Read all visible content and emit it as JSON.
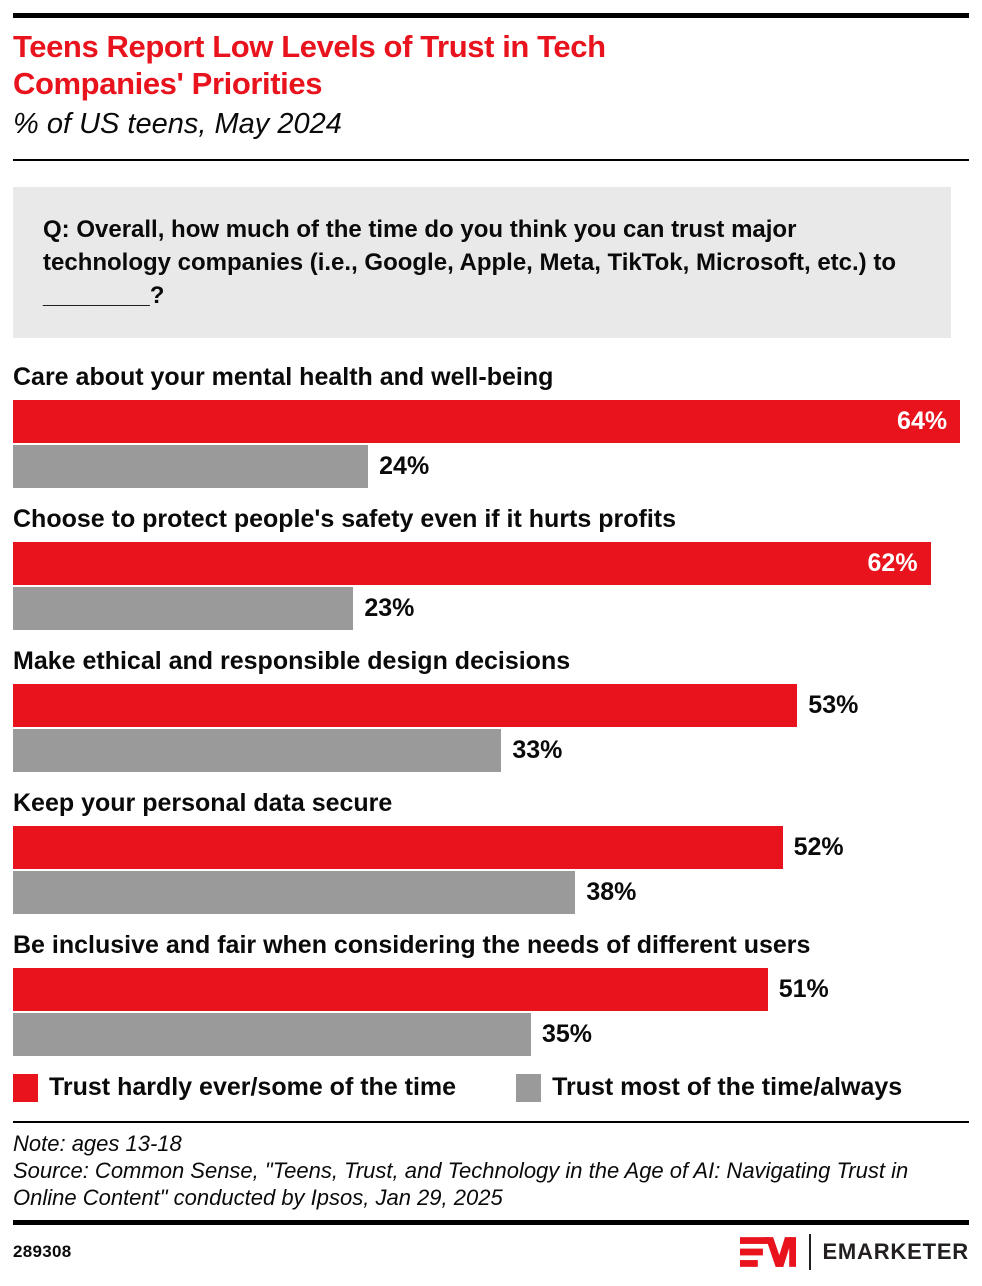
{
  "header": {
    "title": "Teens Report Low Levels of Trust in Tech Companies' Priorities",
    "subtitle": "% of US teens, May 2024"
  },
  "question": "Q: Overall, how much of the time do you think you can trust major technology companies (i.e., Google, Apple, Meta, TikTok, Microsoft, etc.) to ________?",
  "chart_data": {
    "type": "bar",
    "orientation": "horizontal",
    "title": "Teens Report Low Levels of Trust in Tech Companies' Priorities",
    "subtitle": "% of US teens, May 2024",
    "categories": [
      "Care about your mental health and well-being",
      "Choose to protect people's safety even if it hurts profits",
      "Make ethical and responsible design decisions",
      "Keep your personal data secure",
      "Be inclusive and fair when considering the needs of different users"
    ],
    "series": [
      {
        "name": "Trust hardly ever/some of the time",
        "color": "#e8131c",
        "values": [
          64,
          62,
          53,
          52,
          51
        ]
      },
      {
        "name": "Trust most of the time/always",
        "color": "#9a9a9a",
        "values": [
          24,
          23,
          33,
          38,
          35
        ]
      }
    ],
    "value_suffix": "%",
    "axis_max": 64.6,
    "data_labels": true,
    "grid": false,
    "legend_position": "bottom"
  },
  "legend": {
    "items": [
      {
        "label": "Trust hardly ever/some of the time",
        "color": "#e8131c"
      },
      {
        "label": "Trust most of the time/always",
        "color": "#9a9a9a"
      }
    ]
  },
  "notes": {
    "note": "Note: ages 13-18",
    "source": "Source: Common Sense, \"Teens, Trust, and Technology in the Age of AI: Navigating Trust in Online Content\" conducted by Ipsos, Jan 29, 2025"
  },
  "footer": {
    "chart_id": "289308",
    "brand": "EMARKETER"
  },
  "colors": {
    "accent_red": "#e8131c",
    "bar_gray": "#9a9a9a",
    "question_bg": "#e9e9e9",
    "text": "#0a0a0a",
    "brand_dark": "#231f20"
  }
}
